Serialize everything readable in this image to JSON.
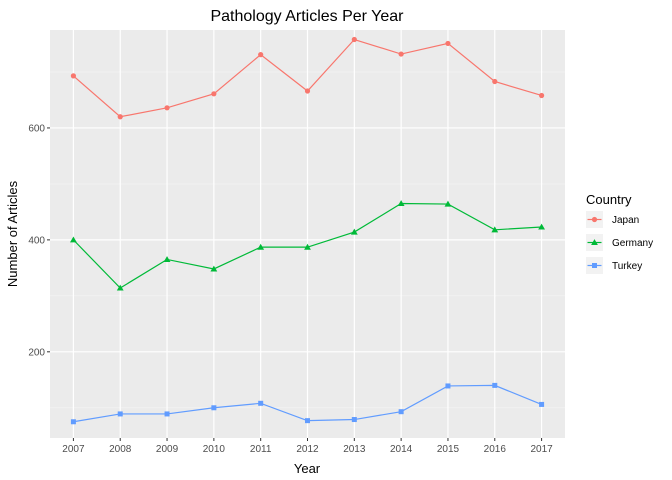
{
  "chart_data": {
    "type": "line",
    "title": "Pathology Articles Per Year",
    "xlabel": "Year",
    "ylabel": "Number of Articles",
    "x": [
      2007,
      2008,
      2009,
      2010,
      2011,
      2012,
      2013,
      2014,
      2015,
      2016,
      2017
    ],
    "xticks": [
      "2007",
      "2008",
      "2009",
      "2010",
      "2011",
      "2012",
      "2013",
      "2014",
      "2015",
      "2016",
      "2017"
    ],
    "yticks": [
      200,
      400,
      600
    ],
    "ylim": [
      46,
      775
    ],
    "grid": true,
    "legend": {
      "title": "Country",
      "position": "right"
    },
    "series": [
      {
        "name": "Japan",
        "color": "#F8766D",
        "marker": "circle",
        "values": [
          693,
          620,
          636,
          661,
          731,
          666,
          758,
          732,
          751,
          683,
          658
        ]
      },
      {
        "name": "Germany",
        "color": "#00BA38",
        "marker": "triangle",
        "values": [
          400,
          314,
          365,
          348,
          387,
          387,
          414,
          465,
          464,
          418,
          423
        ]
      },
      {
        "name": "Turkey",
        "color": "#619CFF",
        "marker": "square",
        "values": [
          75,
          89,
          89,
          100,
          108,
          77,
          79,
          93,
          139,
          140,
          106
        ]
      }
    ]
  }
}
